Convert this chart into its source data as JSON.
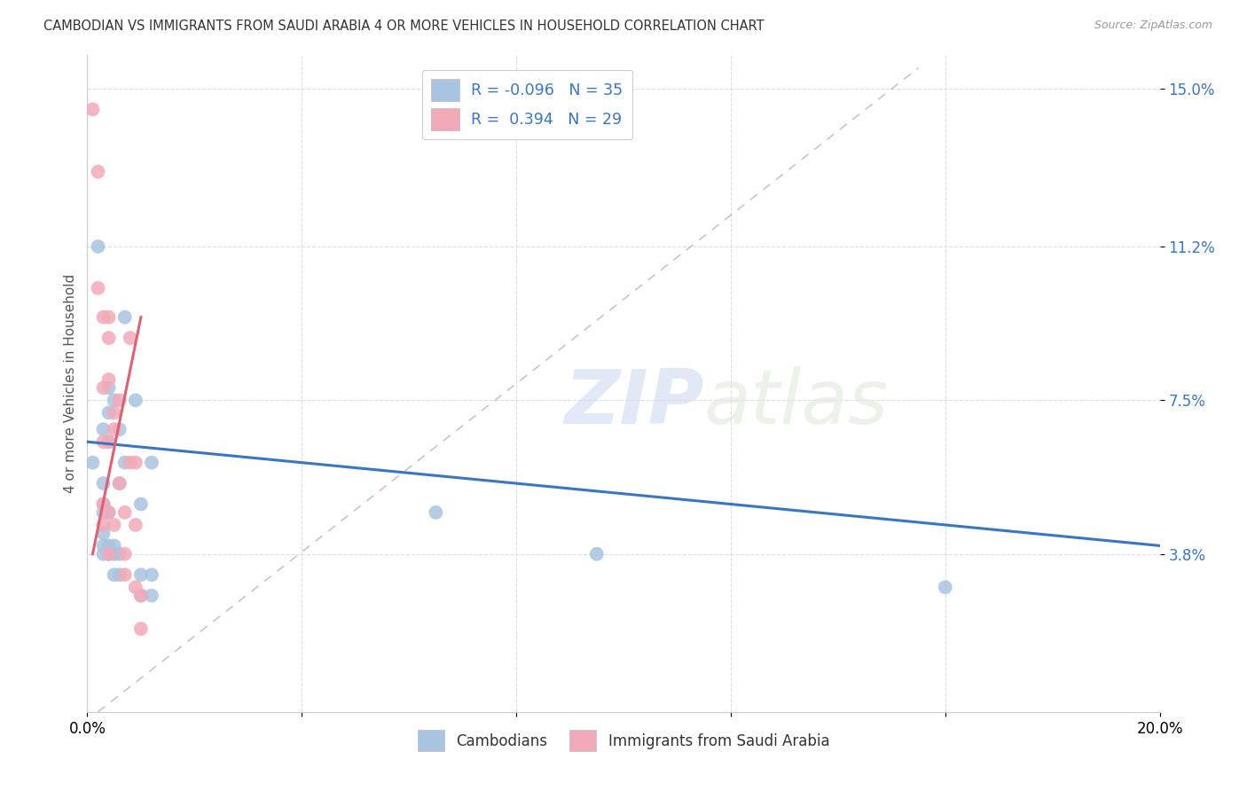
{
  "title": "CAMBODIAN VS IMMIGRANTS FROM SAUDI ARABIA 4 OR MORE VEHICLES IN HOUSEHOLD CORRELATION CHART",
  "source": "Source: ZipAtlas.com",
  "ylabel": "4 or more Vehicles in Household",
  "xlim": [
    0.0,
    0.2
  ],
  "ylim": [
    0.0,
    0.158
  ],
  "xticks": [
    0.0,
    0.04,
    0.08,
    0.12,
    0.16,
    0.2
  ],
  "xticklabels": [
    "0.0%",
    "",
    "",
    "",
    "",
    "20.0%"
  ],
  "ytick_positions": [
    0.038,
    0.075,
    0.112,
    0.15
  ],
  "yticklabels": [
    "3.8%",
    "7.5%",
    "11.2%",
    "15.0%"
  ],
  "grid_color": "#dddddd",
  "background_color": "#ffffff",
  "watermark_zip": "ZIP",
  "watermark_atlas": "atlas",
  "cambodian_color": "#a8c4e0",
  "saudi_color": "#f2aab8",
  "trendline_cambodian_color": "#3a75c4",
  "trendline_saudi_color": "#e06070",
  "trendline_diag_color": "#ccb0b0",
  "cambodian_points": [
    [
      0.001,
      0.06
    ],
    [
      0.002,
      0.112
    ],
    [
      0.003,
      0.068
    ],
    [
      0.003,
      0.055
    ],
    [
      0.003,
      0.05
    ],
    [
      0.003,
      0.048
    ],
    [
      0.003,
      0.043
    ],
    [
      0.003,
      0.04
    ],
    [
      0.003,
      0.038
    ],
    [
      0.004,
      0.078
    ],
    [
      0.004,
      0.072
    ],
    [
      0.004,
      0.065
    ],
    [
      0.004,
      0.048
    ],
    [
      0.004,
      0.04
    ],
    [
      0.004,
      0.038
    ],
    [
      0.005,
      0.075
    ],
    [
      0.005,
      0.04
    ],
    [
      0.005,
      0.038
    ],
    [
      0.005,
      0.033
    ],
    [
      0.006,
      0.068
    ],
    [
      0.006,
      0.055
    ],
    [
      0.006,
      0.038
    ],
    [
      0.006,
      0.033
    ],
    [
      0.007,
      0.095
    ],
    [
      0.007,
      0.06
    ],
    [
      0.009,
      0.075
    ],
    [
      0.01,
      0.05
    ],
    [
      0.01,
      0.033
    ],
    [
      0.01,
      0.028
    ],
    [
      0.012,
      0.06
    ],
    [
      0.012,
      0.033
    ],
    [
      0.012,
      0.028
    ],
    [
      0.065,
      0.048
    ],
    [
      0.095,
      0.038
    ],
    [
      0.16,
      0.03
    ]
  ],
  "saudi_points": [
    [
      0.001,
      0.145
    ],
    [
      0.002,
      0.13
    ],
    [
      0.002,
      0.102
    ],
    [
      0.003,
      0.095
    ],
    [
      0.003,
      0.078
    ],
    [
      0.003,
      0.065
    ],
    [
      0.003,
      0.05
    ],
    [
      0.003,
      0.045
    ],
    [
      0.004,
      0.095
    ],
    [
      0.004,
      0.09
    ],
    [
      0.004,
      0.08
    ],
    [
      0.004,
      0.065
    ],
    [
      0.004,
      0.048
    ],
    [
      0.004,
      0.038
    ],
    [
      0.005,
      0.072
    ],
    [
      0.005,
      0.068
    ],
    [
      0.005,
      0.045
    ],
    [
      0.006,
      0.075
    ],
    [
      0.006,
      0.055
    ],
    [
      0.007,
      0.048
    ],
    [
      0.007,
      0.038
    ],
    [
      0.007,
      0.033
    ],
    [
      0.008,
      0.09
    ],
    [
      0.008,
      0.06
    ],
    [
      0.009,
      0.06
    ],
    [
      0.009,
      0.045
    ],
    [
      0.009,
      0.03
    ],
    [
      0.01,
      0.028
    ],
    [
      0.01,
      0.02
    ]
  ],
  "cam_trendline": [
    [
      0.0,
      0.065
    ],
    [
      0.2,
      0.04
    ]
  ],
  "saudi_trendline": [
    [
      0.001,
      0.038
    ],
    [
      0.01,
      0.095
    ]
  ],
  "diag_line": [
    [
      0.002,
      0.0
    ],
    [
      0.155,
      0.155
    ]
  ]
}
